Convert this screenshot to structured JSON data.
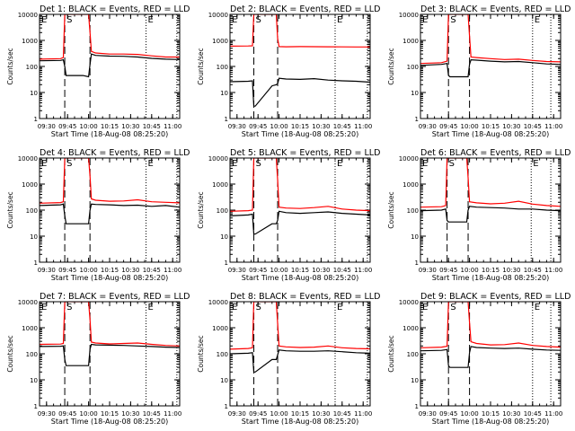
{
  "figure": {
    "xlabel": "Start Time (18-Aug-08 08:25:20)",
    "ylabel": "Counts/sec",
    "y_ticks": [
      "1",
      "10",
      "100",
      "1000",
      "10000"
    ],
    "markers": [
      "E",
      "S",
      "E"
    ],
    "colors": {
      "events": "#000000",
      "lld": "#ff0000",
      "axes": "#000000"
    }
  },
  "chart_data": [
    {
      "type": "line",
      "title": "Det 1: BLACK = Events, RED = LLD",
      "yscale": "log",
      "ylim": [
        1,
        10000
      ],
      "x_ticks": [
        "09:30",
        "09:45",
        "10:00",
        "10:15",
        "10:30",
        "10:45",
        "11:00"
      ],
      "xlim": [
        "09:25",
        "11:05"
      ],
      "events_x": [
        "09:25",
        "09:40",
        "09:42",
        "09:43",
        "09:44",
        "09:56",
        "10:00",
        "10:01",
        "10:02",
        "10:05",
        "10:15",
        "10:25",
        "10:35",
        "10:45",
        "10:55",
        "11:05"
      ],
      "events_y": [
        165,
        170,
        180,
        100,
        45,
        45,
        40,
        120,
        300,
        265,
        250,
        245,
        230,
        205,
        190,
        185
      ],
      "lld_x": [
        "09:25",
        "09:40",
        "09:42",
        "09:43",
        "09:44",
        "09:56",
        "10:00",
        "10:01",
        "10:02",
        "10:05",
        "10:15",
        "10:25",
        "10:35",
        "10:45",
        "10:55",
        "11:05"
      ],
      "lld_y": [
        190,
        200,
        220,
        10000,
        10000,
        10000,
        10000,
        2000,
        380,
        330,
        300,
        300,
        290,
        255,
        230,
        230
      ],
      "vlines_dashed": [
        "09:43",
        "10:01"
      ],
      "vlines_dotted": [
        "10:41",
        "11:03"
      ]
    },
    {
      "type": "line",
      "title": "Det 2: BLACK = Events, RED = LLD",
      "yscale": "log",
      "ylim": [
        1,
        10000
      ],
      "x_ticks": [
        "09:30",
        "09:45",
        "10:00",
        "10:15",
        "10:30",
        "10:45",
        "11:00"
      ],
      "xlim": [
        "09:25",
        "11:05"
      ],
      "events_x": [
        "09:25",
        "09:38",
        "09:41",
        "09:42",
        "09:43",
        "09:55",
        "09:58",
        "09:59",
        "10:00",
        "10:05",
        "10:15",
        "10:25",
        "10:35",
        "10:45",
        "10:55",
        "11:05"
      ],
      "events_y": [
        26,
        27,
        28,
        3,
        3,
        18,
        20,
        22,
        35,
        33,
        32,
        34,
        30,
        28,
        27,
        25
      ],
      "lld_x": [
        "09:25",
        "09:38",
        "09:41",
        "09:42",
        "09:43",
        "09:55",
        "09:58",
        "09:59",
        "10:00",
        "10:05",
        "10:15",
        "10:25",
        "10:35",
        "10:45",
        "10:55",
        "11:05"
      ],
      "lld_y": [
        600,
        610,
        620,
        10000,
        10000,
        10000,
        10000,
        1200,
        580,
        570,
        580,
        575,
        570,
        565,
        560,
        560
      ],
      "vlines_dashed": [
        "09:42",
        "09:59"
      ],
      "vlines_dotted": [
        "10:40",
        "11:03"
      ]
    },
    {
      "type": "line",
      "title": "Det 3: BLACK = Events, RED = LLD",
      "yscale": "log",
      "ylim": [
        1,
        10000
      ],
      "x_ticks": [
        "09:30",
        "09:45",
        "10:00",
        "10:15",
        "10:30",
        "10:45",
        "11:00"
      ],
      "xlim": [
        "09:25",
        "11:05"
      ],
      "events_x": [
        "09:25",
        "09:40",
        "09:44",
        "09:45",
        "09:46",
        "09:55",
        "09:59",
        "10:00",
        "10:01",
        "10:05",
        "10:15",
        "10:25",
        "10:35",
        "10:45",
        "10:55",
        "11:05"
      ],
      "events_y": [
        110,
        120,
        130,
        45,
        40,
        40,
        40,
        120,
        180,
        175,
        160,
        150,
        155,
        140,
        125,
        120
      ],
      "lld_x": [
        "09:25",
        "09:40",
        "09:44",
        "09:45",
        "09:46",
        "09:55",
        "09:59",
        "10:00",
        "10:01",
        "10:05",
        "10:15",
        "10:25",
        "10:35",
        "10:45",
        "10:55",
        "11:05"
      ],
      "lld_y": [
        130,
        140,
        160,
        10000,
        10000,
        10000,
        10000,
        1500,
        230,
        220,
        200,
        185,
        190,
        170,
        155,
        150
      ],
      "vlines_dashed": [
        "09:45",
        "10:00"
      ],
      "vlines_dotted": [
        "10:45",
        "10:58"
      ]
    },
    {
      "type": "line",
      "title": "Det 4: BLACK = Events, RED = LLD",
      "yscale": "log",
      "ylim": [
        1,
        10000
      ],
      "x_ticks": [
        "09:30",
        "09:45",
        "10:00",
        "10:15",
        "10:30",
        "10:45",
        "11:00"
      ],
      "xlim": [
        "09:25",
        "11:05"
      ],
      "events_x": [
        "09:25",
        "09:40",
        "09:42",
        "09:43",
        "09:44",
        "09:56",
        "10:00",
        "10:01",
        "10:02",
        "10:05",
        "10:15",
        "10:25",
        "10:35",
        "10:45",
        "10:55",
        "11:05"
      ],
      "events_y": [
        150,
        160,
        170,
        60,
        30,
        30,
        30,
        100,
        170,
        165,
        160,
        150,
        155,
        140,
        150,
        130
      ],
      "lld_x": [
        "09:25",
        "09:40",
        "09:42",
        "09:43",
        "09:44",
        "09:56",
        "10:00",
        "10:01",
        "10:02",
        "10:05",
        "10:15",
        "10:25",
        "10:35",
        "10:45",
        "10:55",
        "11:05"
      ],
      "lld_y": [
        185,
        195,
        210,
        10000,
        10000,
        10000,
        10000,
        2000,
        270,
        240,
        220,
        225,
        250,
        210,
        200,
        190
      ],
      "vlines_dashed": [
        "09:43",
        "10:01"
      ],
      "vlines_dotted": [
        "10:41",
        "11:03"
      ]
    },
    {
      "type": "line",
      "title": "Det 5: BLACK = Events, RED = LLD",
      "yscale": "log",
      "ylim": [
        1,
        10000
      ],
      "x_ticks": [
        "09:30",
        "09:45",
        "10:00",
        "10:15",
        "10:30",
        "10:45",
        "11:00"
      ],
      "xlim": [
        "09:25",
        "11:05"
      ],
      "events_x": [
        "09:25",
        "09:38",
        "09:41",
        "09:42",
        "09:43",
        "09:55",
        "09:58",
        "09:59",
        "10:00",
        "10:05",
        "10:15",
        "10:25",
        "10:35",
        "10:45",
        "10:55",
        "11:05"
      ],
      "events_y": [
        60,
        65,
        70,
        12,
        12,
        30,
        30,
        40,
        90,
        80,
        75,
        80,
        85,
        75,
        70,
        65
      ],
      "lld_x": [
        "09:25",
        "09:38",
        "09:41",
        "09:42",
        "09:43",
        "09:55",
        "09:58",
        "09:59",
        "10:00",
        "10:05",
        "10:15",
        "10:25",
        "10:35",
        "10:45",
        "10:55",
        "11:05"
      ],
      "lld_y": [
        90,
        95,
        100,
        10000,
        10000,
        10000,
        10000,
        1500,
        130,
        120,
        115,
        125,
        140,
        110,
        100,
        95
      ],
      "vlines_dashed": [
        "09:42",
        "09:59"
      ],
      "vlines_dotted": [
        "10:40",
        "11:03"
      ]
    },
    {
      "type": "line",
      "title": "Det 6: BLACK = Events, RED = LLD",
      "yscale": "log",
      "ylim": [
        1,
        10000
      ],
      "x_ticks": [
        "09:30",
        "09:45",
        "10:00",
        "10:15",
        "10:30",
        "10:45",
        "11:00"
      ],
      "xlim": [
        "09:25",
        "11:05"
      ],
      "events_x": [
        "09:25",
        "09:40",
        "09:43",
        "09:44",
        "09:45",
        "09:55",
        "09:58",
        "09:59",
        "10:00",
        "10:05",
        "10:15",
        "10:25",
        "10:35",
        "10:45",
        "10:55",
        "11:05"
      ],
      "events_y": [
        95,
        100,
        110,
        40,
        35,
        35,
        35,
        100,
        140,
        130,
        125,
        120,
        110,
        110,
        100,
        95
      ],
      "lld_x": [
        "09:25",
        "09:40",
        "09:43",
        "09:44",
        "09:45",
        "09:55",
        "09:58",
        "09:59",
        "10:00",
        "10:05",
        "10:15",
        "10:25",
        "10:35",
        "10:45",
        "10:55",
        "11:05"
      ],
      "lld_y": [
        130,
        135,
        150,
        10000,
        10000,
        10000,
        10000,
        1800,
        210,
        190,
        175,
        185,
        220,
        170,
        150,
        140
      ],
      "vlines_dashed": [
        "09:44",
        "09:59"
      ],
      "vlines_dotted": [
        "10:44",
        "10:58"
      ]
    },
    {
      "type": "line",
      "title": "Det 7: BLACK = Events, RED = LLD",
      "yscale": "log",
      "ylim": [
        1,
        10000
      ],
      "x_ticks": [
        "09:30",
        "09:45",
        "10:00",
        "10:15",
        "10:30",
        "10:45",
        "11:00"
      ],
      "xlim": [
        "09:25",
        "11:05"
      ],
      "events_x": [
        "09:25",
        "09:40",
        "09:42",
        "09:43",
        "09:44",
        "09:56",
        "10:00",
        "10:01",
        "10:02",
        "10:05",
        "10:15",
        "10:25",
        "10:35",
        "10:45",
        "10:55",
        "11:05"
      ],
      "events_y": [
        190,
        195,
        200,
        60,
        35,
        35,
        35,
        150,
        230,
        220,
        215,
        210,
        200,
        190,
        180,
        175
      ],
      "lld_x": [
        "09:25",
        "09:40",
        "09:42",
        "09:43",
        "09:44",
        "09:56",
        "10:00",
        "10:01",
        "10:02",
        "10:05",
        "10:15",
        "10:25",
        "10:35",
        "10:45",
        "10:55",
        "11:05"
      ],
      "lld_y": [
        230,
        235,
        250,
        10000,
        10000,
        10000,
        10000,
        2000,
        280,
        260,
        240,
        250,
        260,
        230,
        210,
        200
      ],
      "vlines_dashed": [
        "09:43",
        "10:01"
      ],
      "vlines_dotted": [
        "10:41",
        "11:03"
      ]
    },
    {
      "type": "line",
      "title": "Det 8: BLACK = Events, RED = LLD",
      "yscale": "log",
      "ylim": [
        1,
        10000
      ],
      "x_ticks": [
        "09:30",
        "09:45",
        "10:00",
        "10:15",
        "10:30",
        "10:45",
        "11:00"
      ],
      "xlim": [
        "09:25",
        "11:05"
      ],
      "events_x": [
        "09:25",
        "09:38",
        "09:41",
        "09:42",
        "09:43",
        "09:55",
        "09:58",
        "09:59",
        "10:00",
        "10:05",
        "10:15",
        "10:25",
        "10:35",
        "10:45",
        "10:55",
        "11:05"
      ],
      "events_y": [
        100,
        105,
        110,
        20,
        20,
        60,
        60,
        90,
        140,
        130,
        125,
        125,
        130,
        120,
        110,
        105
      ],
      "lld_x": [
        "09:25",
        "09:38",
        "09:41",
        "09:42",
        "09:43",
        "09:55",
        "09:58",
        "09:59",
        "10:00",
        "10:05",
        "10:15",
        "10:25",
        "10:35",
        "10:45",
        "10:55",
        "11:05"
      ],
      "lld_y": [
        150,
        160,
        170,
        10000,
        10000,
        10000,
        10000,
        1500,
        200,
        185,
        175,
        180,
        200,
        170,
        160,
        155
      ],
      "vlines_dashed": [
        "09:42",
        "09:59"
      ],
      "vlines_dotted": [
        "10:40",
        "11:03"
      ]
    },
    {
      "type": "line",
      "title": "Det 9: BLACK = Events, RED = LLD",
      "yscale": "log",
      "ylim": [
        1,
        10000
      ],
      "x_ticks": [
        "09:30",
        "09:45",
        "10:00",
        "10:15",
        "10:30",
        "10:45",
        "11:00"
      ],
      "xlim": [
        "09:25",
        "11:05"
      ],
      "events_x": [
        "09:25",
        "09:40",
        "09:44",
        "09:45",
        "09:46",
        "09:55",
        "09:59",
        "10:00",
        "10:01",
        "10:05",
        "10:15",
        "10:25",
        "10:35",
        "10:45",
        "10:55",
        "11:05"
      ],
      "events_y": [
        130,
        135,
        145,
        35,
        30,
        30,
        30,
        110,
        190,
        175,
        165,
        160,
        165,
        150,
        140,
        135
      ],
      "lld_x": [
        "09:25",
        "09:40",
        "09:44",
        "09:45",
        "09:46",
        "09:55",
        "09:59",
        "10:00",
        "10:01",
        "10:05",
        "10:15",
        "10:25",
        "10:35",
        "10:45",
        "10:55",
        "11:05"
      ],
      "lld_y": [
        170,
        180,
        195,
        10000,
        10000,
        10000,
        10000,
        1600,
        290,
        250,
        220,
        225,
        260,
        210,
        190,
        180
      ],
      "vlines_dashed": [
        "09:45",
        "10:00"
      ],
      "vlines_dotted": [
        "10:45",
        "10:58"
      ]
    }
  ]
}
